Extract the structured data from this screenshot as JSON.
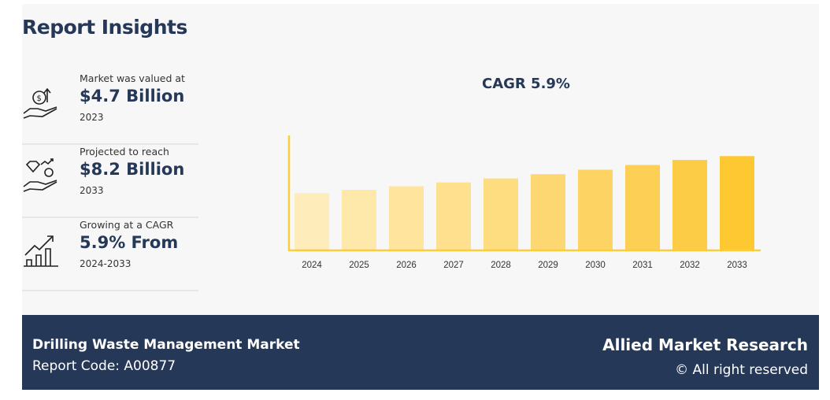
{
  "header": {
    "title": "Report Insights"
  },
  "insights": [
    {
      "label": "Market was valued at",
      "value": "$4.7 Billion",
      "sub": "2023",
      "icon": "hand-money-growth-icon"
    },
    {
      "label": "Projected to reach",
      "value": "$8.2 Billion",
      "sub": "2033",
      "icon": "hand-diamond-coin-icon"
    },
    {
      "label": "Growing at a CAGR",
      "value": "5.9% From",
      "sub": "2024-2033",
      "icon": "bar-chart-growth-icon"
    }
  ],
  "chart_data": {
    "type": "bar",
    "title": "CAGR 5.9%",
    "categories": [
      "2024",
      "2025",
      "2026",
      "2027",
      "2028",
      "2029",
      "2030",
      "2031",
      "2032",
      "2033"
    ],
    "values": [
      4.98,
      5.27,
      5.58,
      5.91,
      6.26,
      6.63,
      7.02,
      7.43,
      7.87,
      8.2
    ],
    "ylim": [
      0,
      10
    ],
    "grid": false,
    "colors": [
      "#feecba",
      "#fee8aa",
      "#fee49c",
      "#fee08e",
      "#fedc80",
      "#fdd872",
      "#fdd463",
      "#fdd055",
      "#fdcc47",
      "#fdc832"
    ],
    "axis_color": "#f8cf3a"
  },
  "footer": {
    "market": "Drilling Waste Management Market",
    "report_code": "Report Code: A00877",
    "brand": "Allied Market Research",
    "rights": "© All right reserved"
  }
}
